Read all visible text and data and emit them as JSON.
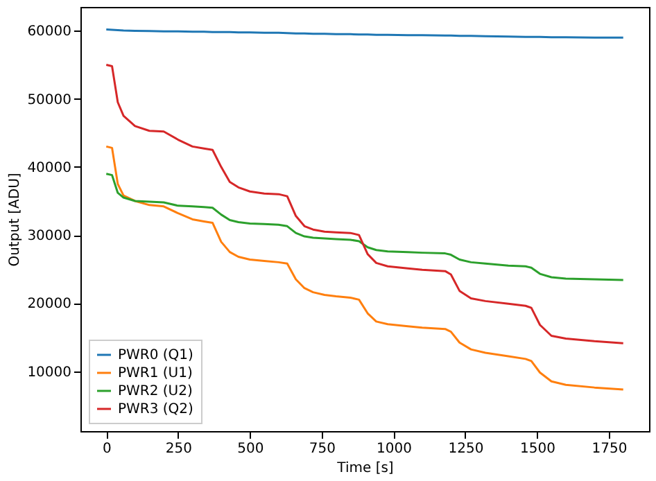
{
  "chart_data": {
    "type": "line",
    "xlabel": "Time [s]",
    "ylabel": "Output [ADU]",
    "xlim": [
      -90,
      1890
    ],
    "ylim": [
      1200,
      63500
    ],
    "xticks": [
      0,
      250,
      500,
      750,
      1000,
      1250,
      1500,
      1750
    ],
    "yticks": [
      10000,
      20000,
      30000,
      40000,
      50000,
      60000
    ],
    "grid": false,
    "legend": "bottom left",
    "marker": "none",
    "line_style": "solid",
    "x": [
      0,
      20,
      40,
      60,
      100,
      150,
      200,
      250,
      300,
      340,
      370,
      400,
      430,
      460,
      500,
      550,
      600,
      630,
      660,
      690,
      720,
      760,
      800,
      850,
      880,
      910,
      940,
      980,
      1050,
      1100,
      1180,
      1200,
      1230,
      1270,
      1320,
      1400,
      1460,
      1480,
      1510,
      1550,
      1600,
      1700,
      1800
    ],
    "series": [
      {
        "name": "PWR0 (Q1)",
        "color": "#1f77b4",
        "values": [
          60200,
          60150,
          60100,
          60050,
          60000,
          59950,
          59900,
          59900,
          59850,
          59850,
          59800,
          59800,
          59800,
          59750,
          59750,
          59700,
          59700,
          59650,
          59600,
          59600,
          59550,
          59550,
          59500,
          59500,
          59450,
          59450,
          59400,
          59400,
          59350,
          59350,
          59300,
          59300,
          59250,
          59250,
          59200,
          59150,
          59100,
          59100,
          59100,
          59050,
          59050,
          59000,
          59000
        ]
      },
      {
        "name": "PWR1 (U1)",
        "color": "#ff7f0e",
        "values": [
          43000,
          42800,
          37500,
          35800,
          35000,
          34400,
          34200,
          33200,
          32300,
          32000,
          31800,
          29000,
          27500,
          26800,
          26400,
          26200,
          26000,
          25800,
          23500,
          22200,
          21600,
          21200,
          21000,
          20800,
          20500,
          18500,
          17300,
          16900,
          16600,
          16400,
          16200,
          15800,
          14200,
          13200,
          12700,
          12200,
          11800,
          11500,
          9800,
          8500,
          8000,
          7600,
          7300
        ]
      },
      {
        "name": "PWR2 (U2)",
        "color": "#2ca02c",
        "values": [
          39000,
          38800,
          36200,
          35500,
          35000,
          34900,
          34800,
          34300,
          34200,
          34100,
          34000,
          33000,
          32200,
          31900,
          31700,
          31600,
          31500,
          31300,
          30300,
          29800,
          29600,
          29500,
          29400,
          29300,
          29100,
          28200,
          27800,
          27600,
          27500,
          27400,
          27300,
          27100,
          26400,
          26000,
          25800,
          25500,
          25400,
          25200,
          24300,
          23800,
          23600,
          23500,
          23400
        ]
      },
      {
        "name": "PWR3 (Q2)",
        "color": "#d62728",
        "values": [
          55000,
          54800,
          49500,
          47500,
          46000,
          45300,
          45200,
          44000,
          43000,
          42700,
          42500,
          40000,
          37800,
          37000,
          36400,
          36100,
          36000,
          35700,
          32800,
          31300,
          30800,
          30500,
          30400,
          30300,
          30000,
          27200,
          25900,
          25400,
          25100,
          24900,
          24700,
          24200,
          21800,
          20700,
          20300,
          19900,
          19600,
          19300,
          16800,
          15200,
          14800,
          14400,
          14100
        ]
      }
    ]
  }
}
